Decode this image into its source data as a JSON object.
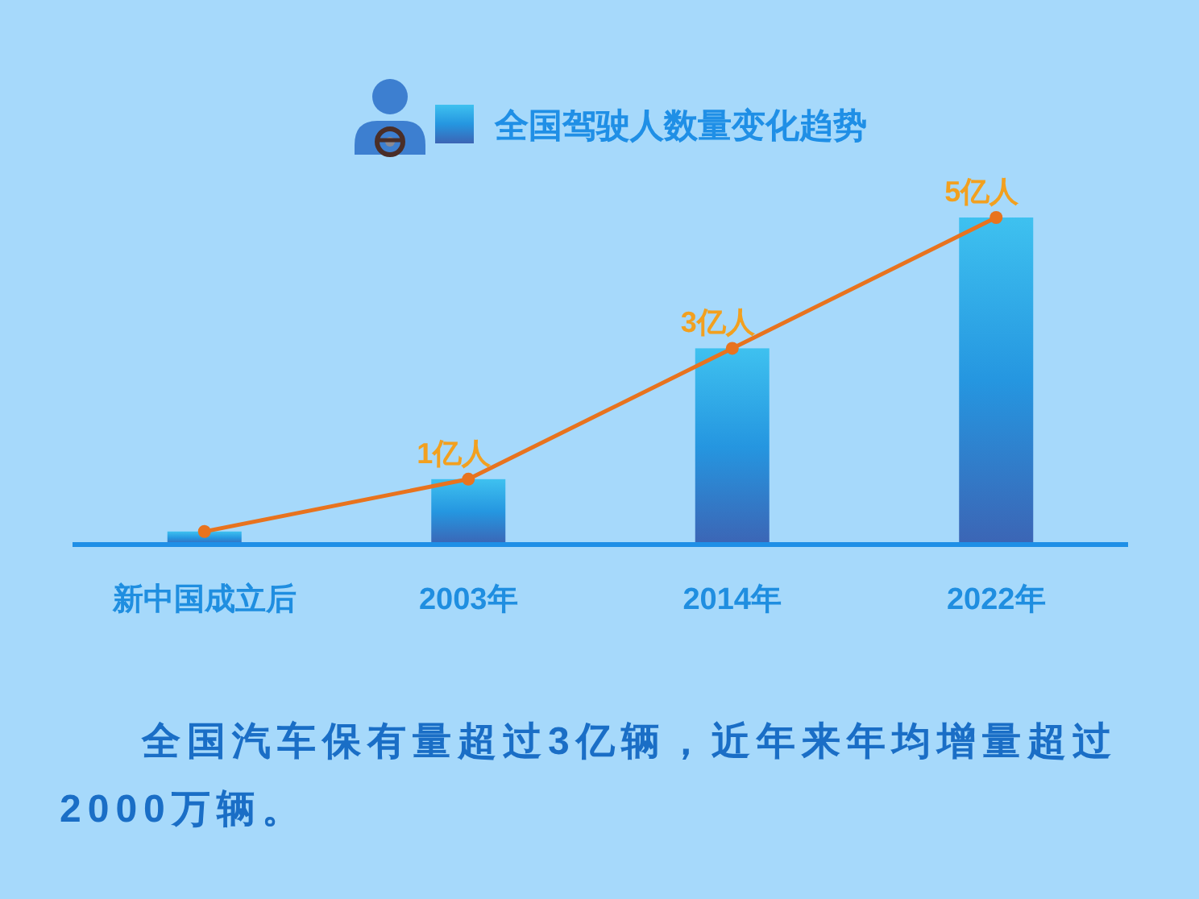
{
  "chart_data": {
    "type": "bar",
    "categories": [
      "新中国成立后",
      "2003年",
      "2014年",
      "2022年"
    ],
    "series": [
      {
        "name": "全国驾驶人数量变化趋势",
        "color": "#2596e0",
        "values": [
          0.2,
          1,
          3,
          5
        ]
      },
      {
        "type": "line",
        "color": "#e8731e",
        "values": [
          0.2,
          1,
          3,
          5
        ],
        "marker": "circle",
        "line_style": "solid",
        "value_labels": [
          null,
          "1亿人",
          "3亿人",
          "5亿人"
        ]
      }
    ],
    "legend": "top",
    "annotations": [
      "全国汽车保有量超过3亿辆，近年来年均增量超过2000万辆。"
    ]
  }
}
